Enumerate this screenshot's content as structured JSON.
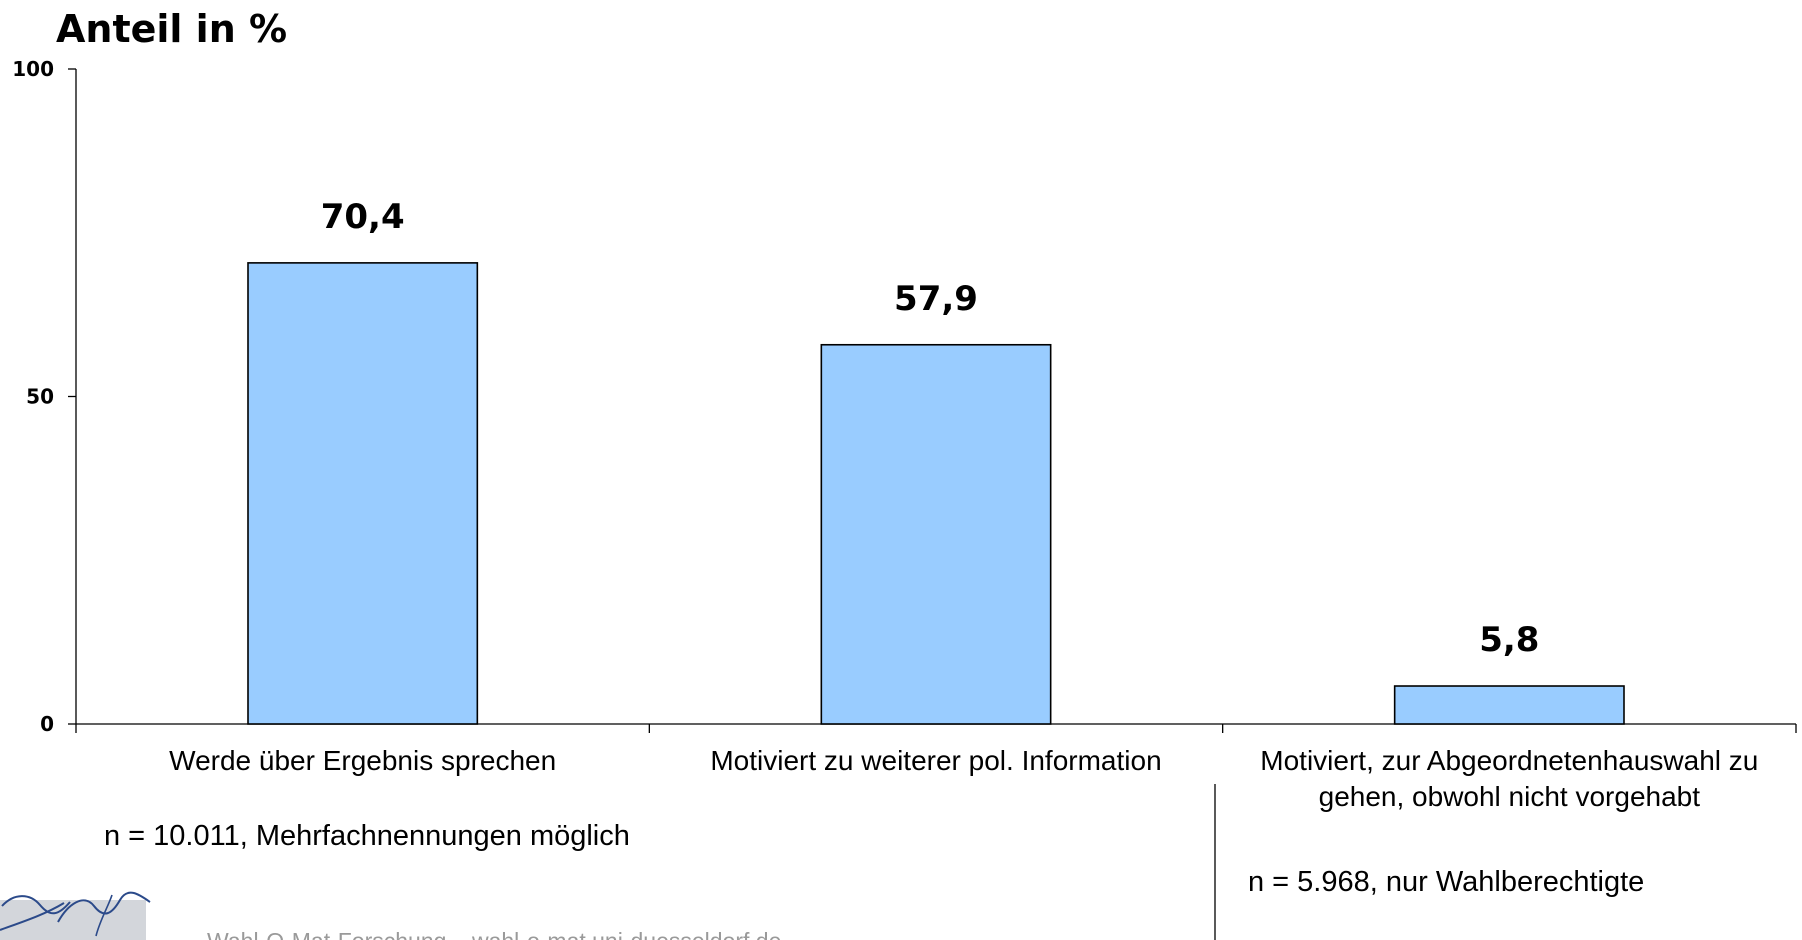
{
  "chart_data": {
    "type": "bar",
    "title": "Anteil in %",
    "categories": [
      [
        "Werde über Ergebnis sprechen"
      ],
      [
        "Motiviert zu weiterer pol. Information"
      ],
      [
        "Motiviert, zur Abgeordnetenhauswahl zu",
        "gehen, obwohl nicht vorgehabt"
      ]
    ],
    "values": [
      70.4,
      57.9,
      5.8
    ],
    "value_labels": [
      "70,4",
      "57,9",
      "5,8"
    ],
    "ylim": [
      0,
      100
    ],
    "yticks": [
      0,
      50,
      100
    ],
    "ytick_labels": [
      "0",
      "50",
      "100"
    ],
    "grid": false,
    "bar_color": "#99CCFF"
  },
  "notes": {
    "left": "n = 10.011, Mehrfachnennungen möglich",
    "right": "n = 5.968, nur Wahlberechtigte"
  },
  "footer": {
    "text": "Wahl-O-Mat-Forschung – wahl-o-mat.uni-duesseldorf.de"
  },
  "colors": {
    "footer_text": "#9A9A9A",
    "logo_background": "#D3D6DB",
    "signature_ink": "#2B4A8A"
  }
}
